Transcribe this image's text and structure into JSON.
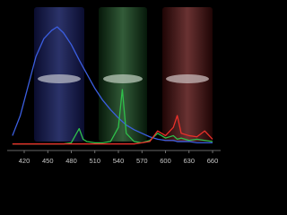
{
  "chart_data": {
    "type": "line",
    "x": [
      405,
      415,
      425,
      435,
      445,
      455,
      462,
      470,
      480,
      490,
      495,
      500,
      510,
      520,
      530,
      540,
      545,
      550,
      560,
      570,
      580,
      590,
      600,
      610,
      615,
      620,
      630,
      640,
      650,
      660
    ],
    "series": [
      {
        "name": "blue",
        "color": "#3b5ee0",
        "values": [
          0.08,
          0.25,
          0.5,
          0.75,
          0.9,
          0.97,
          1.0,
          0.95,
          0.85,
          0.72,
          0.66,
          0.6,
          0.48,
          0.38,
          0.3,
          0.23,
          0.2,
          0.17,
          0.13,
          0.1,
          0.07,
          0.05,
          0.04,
          0.04,
          0.03,
          0.03,
          0.03,
          0.02,
          0.02,
          0.02
        ]
      },
      {
        "name": "green",
        "color": "#2fbf4a",
        "values": [
          0.01,
          0.01,
          0.01,
          0.01,
          0.01,
          0.01,
          0.01,
          0.01,
          0.02,
          0.14,
          0.05,
          0.03,
          0.02,
          0.02,
          0.03,
          0.15,
          0.47,
          0.1,
          0.03,
          0.02,
          0.04,
          0.1,
          0.06,
          0.08,
          0.05,
          0.06,
          0.04,
          0.05,
          0.04,
          0.03
        ]
      },
      {
        "name": "red",
        "color": "#e8302a",
        "values": [
          0.01,
          0.01,
          0.01,
          0.01,
          0.01,
          0.01,
          0.01,
          0.01,
          0.01,
          0.01,
          0.01,
          0.01,
          0.01,
          0.01,
          0.01,
          0.01,
          0.01,
          0.01,
          0.01,
          0.02,
          0.03,
          0.12,
          0.08,
          0.15,
          0.25,
          0.1,
          0.08,
          0.07,
          0.12,
          0.05
        ]
      }
    ],
    "xlim": [
      400,
      665
    ],
    "xticks": [
      420,
      450,
      480,
      510,
      540,
      570,
      600,
      630,
      660
    ],
    "ylim": [
      0,
      1
    ]
  }
}
